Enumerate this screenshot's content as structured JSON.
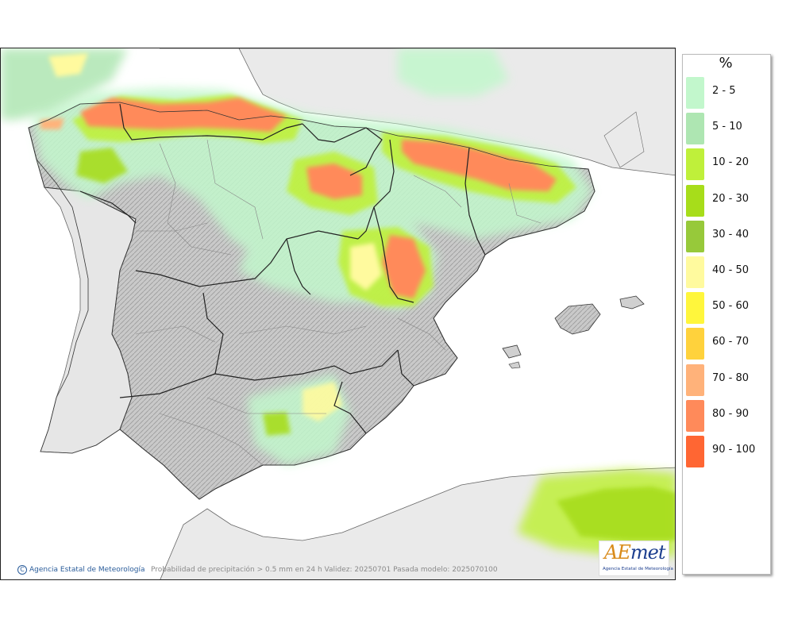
{
  "legend": {
    "unit": "%",
    "items": [
      {
        "label": "2 - 5",
        "color": "#c2f7cc"
      },
      {
        "label": "5 - 10",
        "color": "#aee6b2"
      },
      {
        "label": "10 - 20",
        "color": "#bff03a"
      },
      {
        "label": "20 - 30",
        "color": "#a7dd1a"
      },
      {
        "label": "30 - 40",
        "color": "#97c93a"
      },
      {
        "label": "40 - 50",
        "color": "#fffa9e"
      },
      {
        "label": "50 - 60",
        "color": "#fff63c"
      },
      {
        "label": "60 - 70",
        "color": "#ffd23c"
      },
      {
        "label": "70 - 80",
        "color": "#ffb27a"
      },
      {
        "label": "80 - 90",
        "color": "#ff8a5a"
      },
      {
        "label": "90 - 100",
        "color": "#ff6633"
      }
    ]
  },
  "footer": {
    "credit": "Agencia Estatal de Meteorología",
    "validity": "Probabilidad de precipitación > 0.5 mm en 24 h Validez: 20250701 Pasada modelo: 2025070100"
  },
  "logo": {
    "mark_a": "A",
    "mark_e": "E",
    "mark_rest": "met",
    "subtitle": "Agencia Estatal de Meteorología"
  }
}
